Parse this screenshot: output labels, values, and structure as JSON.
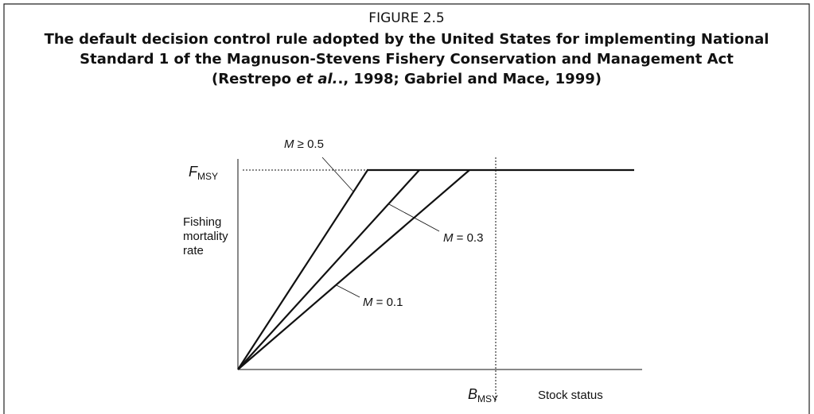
{
  "figure_label": "FIGURE 2.5",
  "title_lines": [
    "The default decision control rule adopted by the United States for implementing National",
    "Standard 1 of the Magnuson-Stevens Fishery Conservation and Management Act",
    {
      "before": "(Restrepo ",
      "italic": "et al.",
      "after": "., 1998; Gabriel and Mace, 1999)"
    }
  ],
  "y_axis": {
    "symbol": "F",
    "subscript": "MSY",
    "label_lines": [
      "Fishing",
      "mortality",
      "rate"
    ]
  },
  "x_axis": {
    "symbol": "B",
    "subscript": "MSY",
    "label": "Stock status"
  },
  "curves": [
    {
      "symbol": "M",
      "relation": " ≥ 0.5"
    },
    {
      "symbol": "M",
      "relation": " = 0.3"
    },
    {
      "symbol": "M",
      "relation": " = 0.1"
    }
  ]
}
